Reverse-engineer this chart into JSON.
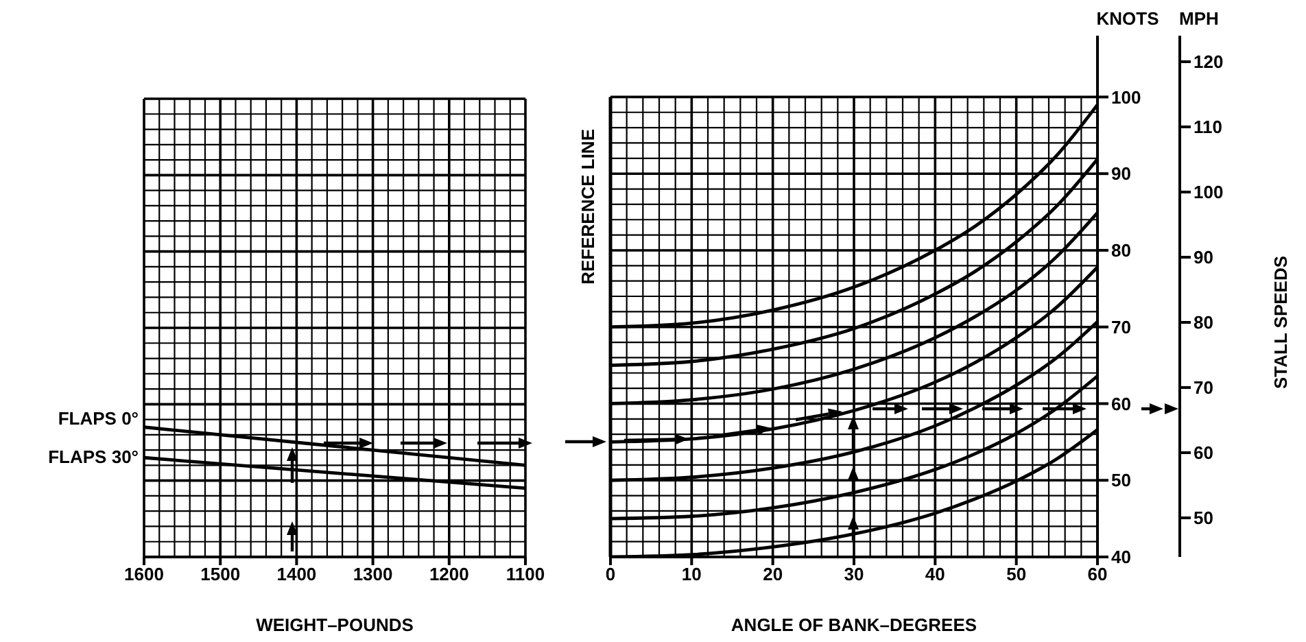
{
  "chart_data": [
    {
      "type": "line",
      "xlabel": "WEIGHT–POUNDS",
      "x": [
        1600,
        1100
      ],
      "xlim": [
        1600,
        1100
      ],
      "xticks": [
        1600,
        1500,
        1400,
        1300,
        1200,
        1100
      ],
      "ylim": [
        40,
        100
      ],
      "yticks": [
        40,
        50,
        60,
        70,
        80,
        90,
        100
      ],
      "tick_labels": "x",
      "grid": true,
      "series": [
        {
          "name": "FLAPS 0°",
          "color": "#000000",
          "values": [
            57,
            52
          ]
        },
        {
          "name": "FLAPS 30°",
          "color": "#000000",
          "values": [
            53,
            49
          ]
        }
      ]
    },
    {
      "type": "line",
      "xlabel": "ANGLE OF BANK–DEGREES",
      "ylabel": "KNOTS",
      "x": [
        0,
        10,
        20,
        30,
        40,
        45,
        50,
        55,
        60
      ],
      "xlim": [
        0,
        60
      ],
      "xticks": [
        0,
        10,
        20,
        30,
        40,
        50,
        60
      ],
      "ylim": [
        40,
        108
      ],
      "yticks": [
        40,
        50,
        60,
        70,
        80,
        90,
        100
      ],
      "y2label": "MPH",
      "y2lim": [
        44,
        124
      ],
      "y2ticks": [
        50,
        60,
        70,
        80,
        90,
        100,
        110,
        120
      ],
      "annotations": [
        "STALL SPEEDS"
      ],
      "grid": true,
      "ref_lines": [
        {
          "axis": "x",
          "value": 0,
          "label": "REFERENCE LINE",
          "color": "#000000"
        }
      ],
      "series": [
        {
          "color": "#000000",
          "values": [
            70,
            70.5,
            72.2,
            75.2,
            80,
            83.2,
            87.3,
            92.4,
            99
          ]
        },
        {
          "color": "#000000",
          "values": [
            65,
            65.5,
            67.1,
            69.8,
            74.3,
            77.3,
            81.1,
            85.8,
            91.9
          ]
        },
        {
          "color": "#000000",
          "values": [
            60,
            60.5,
            61.9,
            64.5,
            68.6,
            71.4,
            74.8,
            79.2,
            84.9
          ]
        },
        {
          "color": "#000000",
          "values": [
            55,
            55.4,
            56.7,
            59.1,
            62.8,
            65.4,
            68.6,
            72.6,
            77.8
          ]
        },
        {
          "color": "#000000",
          "values": [
            50,
            50.4,
            51.6,
            53.7,
            57.1,
            59.5,
            62.4,
            66,
            70.7
          ]
        },
        {
          "color": "#000000",
          "values": [
            45,
            45.3,
            46.4,
            48.4,
            51.4,
            53.5,
            56.1,
            59.4,
            63.6
          ]
        },
        {
          "color": "#000000",
          "values": [
            40,
            40.3,
            41.3,
            43,
            45.7,
            47.6,
            49.9,
            52.8,
            56.6
          ]
        }
      ]
    }
  ]
}
